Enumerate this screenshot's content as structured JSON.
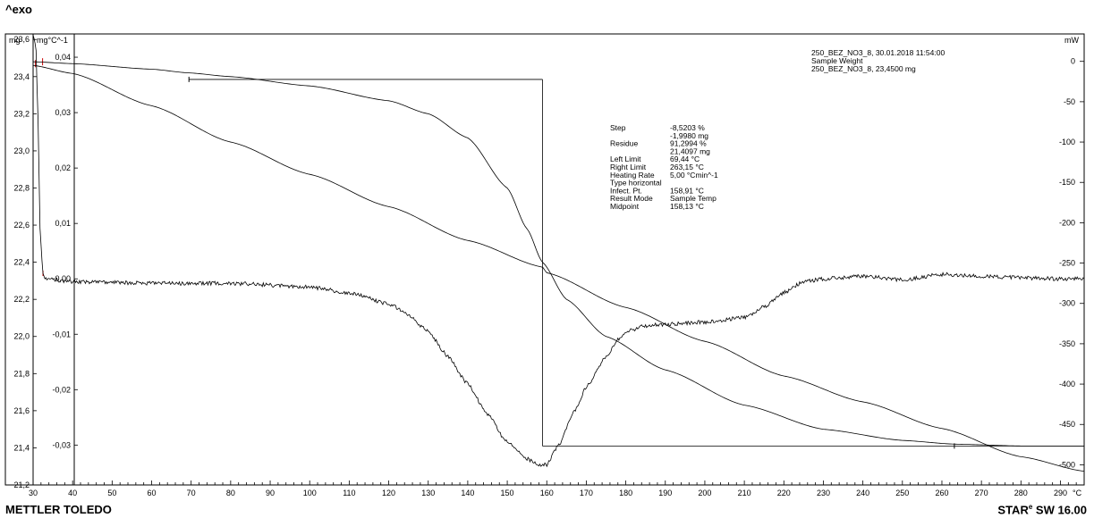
{
  "header": {
    "exo_label": "^exo"
  },
  "footer": {
    "vendor": "METTLER TOLEDO",
    "software_prefix": "STAR",
    "software_mark": "e",
    "software_suffix": " SW 16.00"
  },
  "info_box": {
    "line1": "250_BEZ_NO3_8, 30.01.2018 11:54:00",
    "line2": "Sample Weight",
    "line3": "250_BEZ_NO3_8, 23,4500 mg"
  },
  "results": [
    {
      "label": "Step",
      "value": "-8,5203 %"
    },
    {
      "label": "",
      "value": "-1,9980 mg"
    },
    {
      "label": "Residue",
      "value": "91,2994 %"
    },
    {
      "label": "",
      "value": "21,4097 mg"
    },
    {
      "label": "Left Limit",
      "value": "69,44 °C"
    },
    {
      "label": "Right Limit",
      "value": "263,15 °C"
    },
    {
      "label": "Heating Rate",
      "value": "5,00 °Cmin^-1"
    },
    {
      "label": "Type horizontal",
      "value": ""
    },
    {
      "label": "Infect. Pt.",
      "value": "158,91 °C"
    },
    {
      "label": "Result Mode",
      "value": "Sample Temp"
    },
    {
      "label": "Midpoint",
      "value": "158,13 °C"
    }
  ],
  "chart_data": {
    "type": "line",
    "xlabel": "°C",
    "xlim": [
      30,
      296
    ],
    "x_ticks": [
      30,
      40,
      50,
      60,
      70,
      80,
      90,
      100,
      110,
      120,
      130,
      140,
      150,
      160,
      170,
      180,
      190,
      200,
      210,
      220,
      230,
      240,
      250,
      260,
      270,
      280,
      290
    ],
    "y_mg": {
      "label": "mg",
      "lim": [
        21.2,
        23.63
      ],
      "ticks": [
        "23,6",
        "23,4",
        "23,2",
        "23,0",
        "22,8",
        "22,6",
        "22,4",
        "22,2",
        "22,0",
        "21,8",
        "21,6",
        "21,4",
        "21,2"
      ],
      "tick_values": [
        23.6,
        23.4,
        23.2,
        23.0,
        22.8,
        22.6,
        22.4,
        22.2,
        22.0,
        21.8,
        21.6,
        21.4,
        21.2
      ]
    },
    "y_deriv": {
      "label": "mg°C^-1",
      "lim": [
        -0.0372,
        0.0442
      ],
      "ticks": [
        "0,04",
        "0,03",
        "0,02",
        "0,01",
        "0,00",
        "-0,01",
        "-0,02",
        "-0,03"
      ],
      "tick_values": [
        0.04,
        0.03,
        0.02,
        0.01,
        0.0,
        -0.01,
        -0.02,
        -0.03
      ]
    },
    "y_mw": {
      "label": "mW",
      "lim": [
        -525,
        34
      ],
      "ticks": [
        "0",
        "-50",
        "-100",
        "-150",
        "-200",
        "-250",
        "-300",
        "-350",
        "-400",
        "-450",
        "-500"
      ],
      "tick_values": [
        0,
        -50,
        -100,
        -150,
        -200,
        -250,
        -300,
        -350,
        -400,
        -450,
        -500
      ]
    },
    "series": [
      {
        "axis": "mg",
        "x": [
          30,
          40,
          60,
          69.44,
          80,
          100,
          120,
          130,
          140,
          150,
          155,
          158.91,
          165,
          175,
          190,
          210,
          230,
          250,
          263.15,
          280,
          296
        ],
        "y": [
          23.48,
          23.47,
          23.44,
          23.42,
          23.4,
          23.35,
          23.27,
          23.2,
          23.07,
          22.8,
          22.58,
          22.4,
          22.2,
          22.0,
          21.82,
          21.63,
          21.5,
          21.44,
          21.42,
          21.41,
          21.41
        ]
      },
      {
        "axis": "mW",
        "x": [
          30,
          40,
          60,
          80,
          100,
          120,
          140,
          158.91,
          160,
          180,
          200,
          220,
          240,
          260,
          280,
          296
        ],
        "y": [
          -5,
          -15,
          -55,
          -100,
          -140,
          -180,
          -222,
          -255,
          -262,
          -305,
          -347,
          -390,
          -422,
          -455,
          -490,
          -508
        ]
      },
      {
        "axis": "deriv",
        "x": [
          30,
          30.7,
          31.2,
          31.8,
          32.5,
          33,
          40,
          60,
          80,
          100,
          110,
          120,
          125,
          130,
          135,
          140,
          145,
          150,
          155,
          158,
          160,
          163,
          167,
          170,
          175,
          178,
          180,
          185,
          190,
          200,
          210,
          215,
          220,
          225,
          230,
          240,
          250,
          260,
          270,
          280,
          290,
          296
        ],
        "y": [
          0.044,
          0.042,
          0.03,
          0.008,
          0.001,
          0.0,
          -0.0005,
          -0.0008,
          -0.0008,
          -0.0015,
          -0.0025,
          -0.0045,
          -0.0065,
          -0.0095,
          -0.014,
          -0.019,
          -0.0245,
          -0.0295,
          -0.0325,
          -0.0335,
          -0.0335,
          -0.03,
          -0.024,
          -0.0195,
          -0.014,
          -0.011,
          -0.0095,
          -0.0085,
          -0.0082,
          -0.0078,
          -0.007,
          -0.005,
          -0.0025,
          -0.0005,
          0.0,
          0.0005,
          -0.0002,
          0.0008,
          0.0005,
          0.0002,
          0.0,
          0.0
        ]
      }
    ],
    "construction": {
      "left_limit": 69.44,
      "right_limit": 263.15,
      "inflection": 158.91,
      "upper_level_mg": 23.385,
      "lower_level_mg": 21.41
    }
  }
}
